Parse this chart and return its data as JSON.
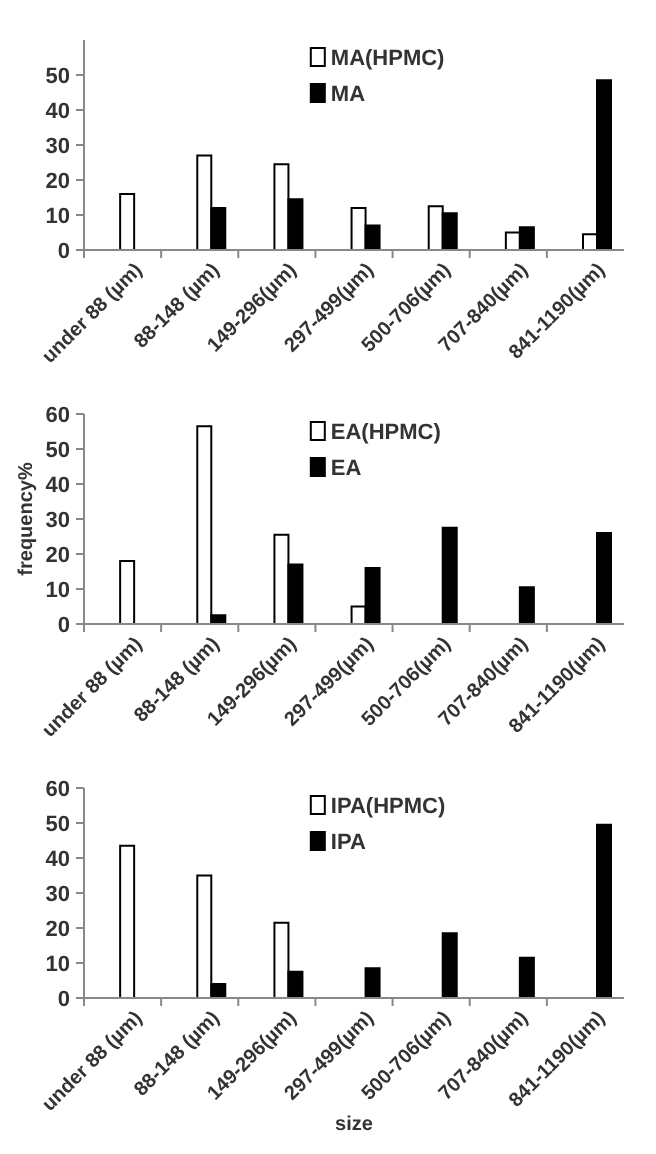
{
  "chart_data": [
    {
      "type": "bar",
      "categories": [
        "under 88 (µm)",
        "88-148 (µm)",
        "149-296(µm)",
        "297-499(µm)",
        "500-706(µm)",
        "707-840(µm)",
        "841-1190(µm)"
      ],
      "ylim": [
        0,
        60
      ],
      "yticks": [
        0,
        10,
        20,
        30,
        40,
        50
      ],
      "legend": "top",
      "grid": false,
      "series": [
        {
          "name": "MA(HPMC)",
          "color": "#ffffff",
          "values": [
            16,
            27,
            24.5,
            12,
            12.5,
            5,
            4.5
          ]
        },
        {
          "name": "MA",
          "color": "#000000",
          "values": [
            null,
            12,
            14.5,
            7,
            10.5,
            6.5,
            48.5
          ]
        }
      ]
    },
    {
      "type": "bar",
      "ylabel": "frequency%",
      "categories": [
        "under 88 (µm)",
        "88-148 (µm)",
        "149-296(µm)",
        "297-499(µm)",
        "500-706(µm)",
        "707-840(µm)",
        "841-1190(µm)"
      ],
      "ylim": [
        0,
        60
      ],
      "yticks": [
        0,
        10,
        20,
        30,
        40,
        50,
        60
      ],
      "legend": "top",
      "grid": false,
      "series": [
        {
          "name": "EA(HPMC)",
          "color": "#ffffff",
          "values": [
            18,
            56.5,
            25.5,
            5,
            null,
            null,
            null
          ]
        },
        {
          "name": "EA",
          "color": "#000000",
          "values": [
            null,
            2.5,
            17,
            16,
            27.5,
            10.5,
            26
          ]
        }
      ]
    },
    {
      "type": "bar",
      "xlabel": "size",
      "categories": [
        "under 88 (µm)",
        "88-148 (µm)",
        "149-296(µm)",
        "297-499(µm)",
        "500-706(µm)",
        "707-840(µm)",
        "841-1190(µm)"
      ],
      "ylim": [
        0,
        60
      ],
      "yticks": [
        0,
        10,
        20,
        30,
        40,
        50,
        60
      ],
      "legend": "top",
      "grid": false,
      "series": [
        {
          "name": "IPA(HPMC)",
          "color": "#ffffff",
          "values": [
            43.5,
            35,
            21.5,
            null,
            null,
            null,
            null
          ]
        },
        {
          "name": "IPA",
          "color": "#000000",
          "values": [
            null,
            4,
            7.5,
            8.5,
            18.5,
            11.5,
            49.5
          ]
        }
      ]
    }
  ]
}
